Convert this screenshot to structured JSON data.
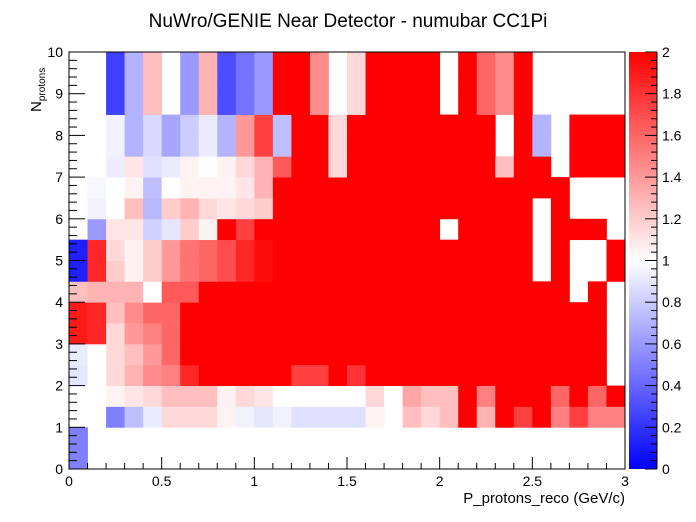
{
  "chart_data": {
    "type": "heatmap",
    "title": "NuWro/GENIE Near Detector - numubar CC1Pi",
    "xlabel": "P_protons_reco (GeV/c)",
    "ylabel_main": "N",
    "ylabel_sub": "protons",
    "xlim": [
      0,
      3
    ],
    "ylim": [
      0,
      10
    ],
    "x_ticks": [
      "0",
      "0.5",
      "1",
      "1.5",
      "2",
      "2.5",
      "3"
    ],
    "y_ticks": [
      "0",
      "1",
      "2",
      "3",
      "4",
      "5",
      "6",
      "7",
      "8",
      "9",
      "10"
    ],
    "zlim": [
      0,
      2
    ],
    "z_ticks": [
      "0",
      "0.2",
      "0.4",
      "0.6",
      "0.8",
      "1",
      "1.2",
      "1.4",
      "1.6",
      "1.8",
      "2"
    ],
    "x_bins": 30,
    "y_bins": 20,
    "colorscale": {
      "low": "#0000ff",
      "mid": "#ffffff",
      "high": "#ff0000"
    },
    "values": [
      [
        0.5,
        null,
        null,
        null,
        null,
        null,
        null,
        null,
        null,
        null,
        null,
        null,
        null,
        null,
        null,
        null,
        null,
        null,
        null,
        null,
        null,
        null,
        null,
        null,
        null,
        null,
        null,
        null,
        null,
        null
      ],
      [
        0.5,
        null,
        null,
        null,
        null,
        null,
        null,
        null,
        null,
        null,
        null,
        null,
        null,
        null,
        null,
        null,
        null,
        null,
        null,
        null,
        null,
        null,
        null,
        null,
        null,
        null,
        null,
        null,
        null,
        null
      ],
      [
        null,
        null,
        0.5,
        0.75,
        0.92,
        1.15,
        1.15,
        1.15,
        1.05,
        0.95,
        0.9,
        0.95,
        0.88,
        0.88,
        0.88,
        0.88,
        1.05,
        null,
        1.25,
        1.15,
        1.25,
        2.0,
        1.3,
        2.0,
        1.75,
        2.0,
        1.5,
        1.75,
        1.5,
        1.5
      ],
      [
        null,
        null,
        1.05,
        1.1,
        1.15,
        1.25,
        1.25,
        1.25,
        1.05,
        1.15,
        1.1,
        1.0,
        1.0,
        1.0,
        1.0,
        1.0,
        1.15,
        1.0,
        1.35,
        1.25,
        1.25,
        2.0,
        1.5,
        2.0,
        2.0,
        2.0,
        1.6,
        2.0,
        1.6,
        2.0
      ],
      [
        0.9,
        1.0,
        1.15,
        1.3,
        1.45,
        1.5,
        1.85,
        2.0,
        2.0,
        2.0,
        2.0,
        2.0,
        1.75,
        1.75,
        2.0,
        1.8,
        2.0,
        2.0,
        2.0,
        2.0,
        2.0,
        2.0,
        2.0,
        2.0,
        2.0,
        2.0,
        2.0,
        2.0,
        2.0,
        null
      ],
      [
        0.92,
        1.0,
        1.15,
        1.25,
        1.4,
        1.6,
        2.0,
        2.0,
        2.0,
        2.0,
        2.0,
        2.0,
        2.0,
        2.0,
        2.0,
        2.0,
        2.0,
        2.0,
        2.0,
        2.0,
        2.0,
        2.0,
        2.0,
        2.0,
        2.0,
        2.0,
        2.0,
        2.0,
        2.0,
        null
      ],
      [
        1.9,
        1.85,
        1.15,
        1.4,
        1.5,
        1.6,
        2.0,
        2.0,
        2.0,
        2.0,
        2.0,
        2.0,
        2.0,
        2.0,
        2.0,
        2.0,
        2.0,
        2.0,
        2.0,
        2.0,
        2.0,
        2.0,
        2.0,
        2.0,
        2.0,
        2.0,
        2.0,
        2.0,
        2.0,
        null
      ],
      [
        1.9,
        1.85,
        1.25,
        1.45,
        1.6,
        1.6,
        2.0,
        2.0,
        2.0,
        2.0,
        2.0,
        2.0,
        2.0,
        2.0,
        2.0,
        2.0,
        2.0,
        2.0,
        2.0,
        2.0,
        2.0,
        2.0,
        2.0,
        2.0,
        2.0,
        2.0,
        2.0,
        2.0,
        2.0,
        null
      ],
      [
        1.25,
        1.3,
        1.3,
        1.3,
        1.0,
        1.65,
        1.65,
        2.0,
        2.0,
        2.0,
        2.0,
        2.0,
        2.0,
        2.0,
        2.0,
        2.0,
        2.0,
        2.0,
        2.0,
        2.0,
        2.0,
        2.0,
        2.0,
        2.0,
        2.0,
        2.0,
        2.0,
        null,
        2.0,
        null
      ],
      [
        0.12,
        1.85,
        1.2,
        1.05,
        1.2,
        1.4,
        1.55,
        1.6,
        1.7,
        1.85,
        1.95,
        2.0,
        2.0,
        2.0,
        2.0,
        2.0,
        2.0,
        2.0,
        2.0,
        2.0,
        2.0,
        2.0,
        2.0,
        2.0,
        2.0,
        null,
        2.0,
        null,
        null,
        2.0
      ],
      [
        0.12,
        1.85,
        1.15,
        1.05,
        1.2,
        1.4,
        1.55,
        1.6,
        1.7,
        1.85,
        1.95,
        2.0,
        2.0,
        2.0,
        2.0,
        2.0,
        2.0,
        2.0,
        2.0,
        2.0,
        2.0,
        2.0,
        2.0,
        2.0,
        2.0,
        null,
        2.0,
        null,
        null,
        2.0
      ],
      [
        null,
        0.6,
        1.1,
        1.1,
        0.82,
        0.9,
        1.2,
        1.05,
        2.0,
        1.75,
        2.0,
        2.0,
        2.0,
        2.0,
        2.0,
        2.0,
        2.0,
        2.0,
        2.0,
        2.0,
        null,
        2.0,
        2.0,
        2.0,
        2.0,
        null,
        2.0,
        2.0,
        2.0,
        null
      ],
      [
        null,
        0.95,
        1.0,
        1.25,
        0.72,
        1.2,
        1.3,
        1.15,
        1.1,
        1.15,
        1.2,
        2.0,
        2.0,
        2.0,
        2.0,
        2.0,
        2.0,
        2.0,
        2.0,
        2.0,
        2.0,
        2.0,
        2.0,
        2.0,
        2.0,
        null,
        2.0,
        null,
        null,
        null
      ],
      [
        null,
        0.97,
        1.0,
        1.05,
        0.75,
        1.0,
        1.05,
        1.05,
        1.05,
        1.1,
        1.3,
        2.0,
        2.0,
        2.0,
        2.0,
        2.0,
        2.0,
        2.0,
        2.0,
        2.0,
        2.0,
        2.0,
        2.0,
        2.0,
        2.0,
        2.0,
        2.0,
        null,
        null,
        null
      ],
      [
        null,
        null,
        0.93,
        1.1,
        0.88,
        0.92,
        1.05,
        1.0,
        1.05,
        1.15,
        1.3,
        1.65,
        2.0,
        2.0,
        1.15,
        2.0,
        2.0,
        2.0,
        2.0,
        2.0,
        2.0,
        2.0,
        2.0,
        1.25,
        2.0,
        2.0,
        null,
        2.0,
        2.0,
        2.0
      ],
      [
        null,
        null,
        0.95,
        0.7,
        0.85,
        0.65,
        0.8,
        0.92,
        0.7,
        1.4,
        1.75,
        0.75,
        2.0,
        2.0,
        1.15,
        2.0,
        2.0,
        2.0,
        2.0,
        2.0,
        2.0,
        2.0,
        2.0,
        null,
        2.0,
        0.7,
        null,
        2.0,
        2.0,
        2.0
      ],
      [
        null,
        null,
        0.95,
        0.7,
        0.85,
        0.65,
        0.8,
        0.92,
        0.7,
        1.4,
        1.75,
        0.75,
        2.0,
        2.0,
        1.15,
        2.0,
        2.0,
        2.0,
        2.0,
        2.0,
        2.0,
        2.0,
        2.0,
        null,
        2.0,
        0.7,
        null,
        2.0,
        2.0,
        2.0
      ],
      [
        null,
        null,
        0.25,
        0.7,
        1.25,
        null,
        0.6,
        1.3,
        0.3,
        0.45,
        0.6,
        2.0,
        2.0,
        1.45,
        null,
        1.15,
        2.0,
        2.0,
        2.0,
        2.0,
        null,
        2.0,
        1.6,
        1.45,
        2.0,
        null,
        null,
        null,
        null,
        null
      ],
      [
        null,
        null,
        0.25,
        0.7,
        1.25,
        null,
        0.6,
        1.3,
        0.3,
        0.45,
        0.6,
        2.0,
        2.0,
        1.45,
        null,
        1.15,
        2.0,
        2.0,
        2.0,
        2.0,
        null,
        2.0,
        1.6,
        1.45,
        2.0,
        null,
        null,
        null,
        null,
        null
      ],
      [
        null,
        null,
        0.25,
        0.7,
        1.25,
        null,
        0.6,
        1.3,
        0.3,
        0.45,
        0.6,
        2.0,
        2.0,
        1.45,
        null,
        1.15,
        2.0,
        2.0,
        2.0,
        2.0,
        null,
        2.0,
        1.6,
        1.45,
        2.0,
        null,
        null,
        null,
        null,
        null
      ]
    ]
  }
}
